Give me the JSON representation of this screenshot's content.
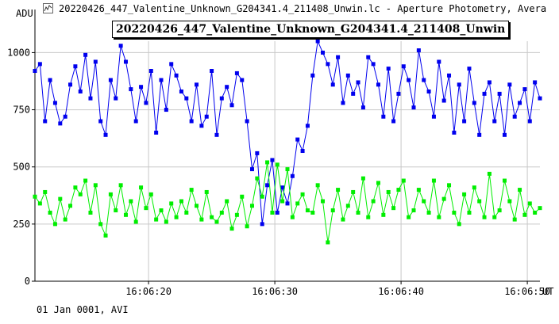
{
  "window": {
    "title": "20220426_447_Valentine_Unknown_G204341.4_211408_Unwin.lc - Aperture Photometry, Avera",
    "icon": "chart-app-icon"
  },
  "footer": {
    "label": "01 Jan 0001, AVI"
  },
  "chart_data": {
    "type": "line",
    "title": "20220426_447_Valentine_Unknown_G204341.4_211408_Unwin",
    "ylabel": "ADU",
    "xlabel": "",
    "x_unit_label": "UT",
    "ylim": [
      0,
      1050
    ],
    "xlim": [
      "16:06:11.0",
      "16:06:51.0"
    ],
    "y_ticks": [
      "0",
      "250",
      "500",
      "750",
      "1000"
    ],
    "x_ticks": [
      "16:06:20",
      "16:06:30",
      "16:06:40",
      "16:06:50"
    ],
    "grid": true,
    "colors": {
      "target": "#0000ee",
      "comparison": "#00ee00",
      "grid": "#c8c8c8"
    },
    "series": [
      {
        "color": "#0000ee",
        "x": [
          11.0,
          11.4,
          11.8,
          12.2,
          12.6,
          13.0,
          13.4,
          13.8,
          14.2,
          14.6,
          15.0,
          15.4,
          15.8,
          16.2,
          16.6,
          17.0,
          17.4,
          17.8,
          18.2,
          18.6,
          19.0,
          19.4,
          19.8,
          20.2,
          20.6,
          21.0,
          21.4,
          21.8,
          22.2,
          22.6,
          23.0,
          23.4,
          23.8,
          24.2,
          24.6,
          25.0,
          25.4,
          25.8,
          26.2,
          26.6,
          27.0,
          27.4,
          27.8,
          28.2,
          28.6,
          29.0,
          29.4,
          29.8,
          30.2,
          30.6,
          31.0,
          31.4,
          31.8,
          32.2,
          32.6,
          33.0,
          33.4,
          33.8,
          34.2,
          34.6,
          35.0,
          35.4,
          35.8,
          36.2,
          36.6,
          37.0,
          37.4,
          37.8,
          38.2,
          38.6,
          39.0,
          39.4,
          39.8,
          40.2,
          40.6,
          41.0,
          41.4,
          41.8,
          42.2,
          42.6,
          43.0,
          43.4,
          43.8,
          44.2,
          44.6,
          45.0,
          45.4,
          45.8,
          46.2,
          46.6,
          47.0,
          47.4,
          47.8,
          48.2,
          48.6,
          49.0,
          49.4,
          49.8,
          50.2,
          50.6,
          51.0
        ],
        "y": [
          920,
          950,
          700,
          880,
          780,
          690,
          720,
          860,
          940,
          830,
          990,
          800,
          960,
          700,
          640,
          880,
          800,
          1030,
          960,
          840,
          700,
          850,
          780,
          920,
          650,
          880,
          750,
          950,
          900,
          830,
          800,
          700,
          860,
          680,
          720,
          920,
          640,
          800,
          850,
          770,
          910,
          880,
          700,
          490,
          560,
          250,
          420,
          530,
          300,
          410,
          340,
          460,
          620,
          570,
          680,
          900,
          1050,
          1000,
          950,
          860,
          980,
          780,
          900,
          820,
          870,
          760,
          980,
          950,
          860,
          720,
          930,
          700,
          820,
          940,
          880,
          760,
          1010,
          880,
          830,
          720,
          960,
          790,
          900,
          650,
          860,
          700,
          930,
          780,
          640,
          820,
          870,
          700,
          820,
          640,
          860,
          720,
          780,
          840,
          700,
          870,
          800
        ],
        "markers": "dense"
      },
      {
        "color": "#00ee00",
        "x": [
          11.0,
          11.4,
          11.8,
          12.2,
          12.6,
          13.0,
          13.4,
          13.8,
          14.2,
          14.6,
          15.0,
          15.4,
          15.8,
          16.2,
          16.6,
          17.0,
          17.4,
          17.8,
          18.2,
          18.6,
          19.0,
          19.4,
          19.8,
          20.2,
          20.6,
          21.0,
          21.4,
          21.8,
          22.2,
          22.6,
          23.0,
          23.4,
          23.8,
          24.2,
          24.6,
          25.0,
          25.4,
          25.8,
          26.2,
          26.6,
          27.0,
          27.4,
          27.8,
          28.2,
          28.6,
          29.0,
          29.4,
          29.8,
          30.2,
          30.6,
          31.0,
          31.4,
          31.8,
          32.2,
          32.6,
          33.0,
          33.4,
          33.8,
          34.2,
          34.6,
          35.0,
          35.4,
          35.8,
          36.2,
          36.6,
          37.0,
          37.4,
          37.8,
          38.2,
          38.6,
          39.0,
          39.4,
          39.8,
          40.2,
          40.6,
          41.0,
          41.4,
          41.8,
          42.2,
          42.6,
          43.0,
          43.4,
          43.8,
          44.2,
          44.6,
          45.0,
          45.4,
          45.8,
          46.2,
          46.6,
          47.0,
          47.4,
          47.8,
          48.2,
          48.6,
          49.0,
          49.4,
          49.8,
          50.2,
          50.6,
          51.0
        ],
        "y": [
          370,
          340,
          390,
          300,
          250,
          360,
          270,
          330,
          410,
          380,
          440,
          300,
          420,
          250,
          200,
          380,
          310,
          420,
          290,
          350,
          260,
          410,
          320,
          380,
          270,
          310,
          260,
          340,
          280,
          350,
          300,
          400,
          330,
          270,
          390,
          280,
          260,
          300,
          350,
          230,
          290,
          370,
          240,
          330,
          450,
          370,
          520,
          300,
          510,
          350,
          490,
          280,
          340,
          380,
          310,
          300,
          420,
          350,
          170,
          310,
          400,
          270,
          330,
          390,
          300,
          450,
          280,
          350,
          430,
          290,
          390,
          320,
          400,
          440,
          280,
          310,
          400,
          350,
          300,
          440,
          280,
          360,
          420,
          300,
          250,
          380,
          300,
          410,
          350,
          280,
          470,
          280,
          310,
          440,
          350,
          270,
          400,
          290,
          340,
          300,
          320
        ],
        "markers": "dense"
      }
    ]
  }
}
